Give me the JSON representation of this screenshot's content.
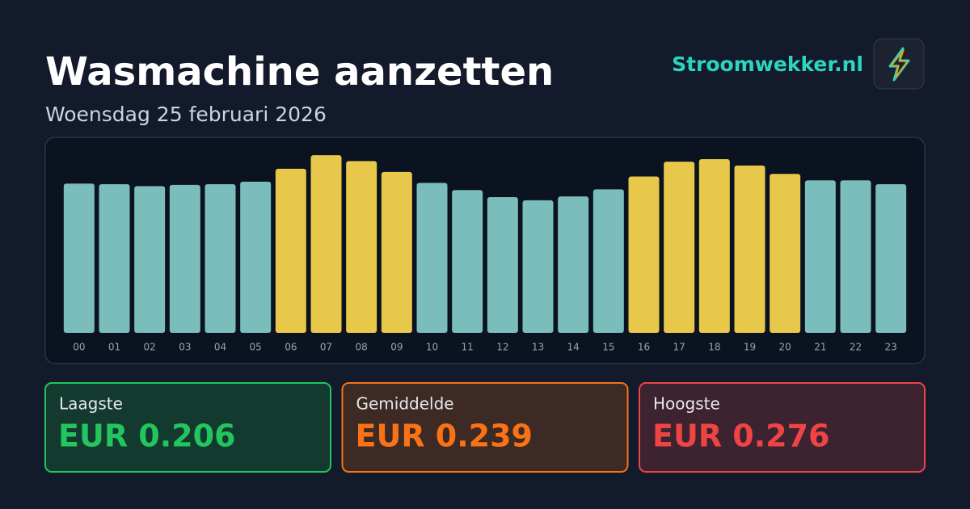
{
  "header": {
    "title": "Wasmachine aanzetten",
    "subtitle": "Woensdag 25 februari 2026",
    "brand": "Stroomwekker.nl"
  },
  "chart_data": {
    "type": "bar",
    "categories": [
      "00",
      "01",
      "02",
      "03",
      "04",
      "05",
      "06",
      "07",
      "08",
      "09",
      "10",
      "11",
      "12",
      "13",
      "14",
      "15",
      "16",
      "17",
      "18",
      "19",
      "20",
      "21",
      "22",
      "23"
    ],
    "values": [
      0.232,
      0.231,
      0.228,
      0.23,
      0.231,
      0.235,
      0.255,
      0.276,
      0.267,
      0.25,
      0.233,
      0.222,
      0.211,
      0.206,
      0.212,
      0.223,
      0.243,
      0.266,
      0.27,
      0.26,
      0.247,
      0.237,
      0.237,
      0.231
    ],
    "colors": [
      "#7bbcbc",
      "#7bbcbc",
      "#7bbcbc",
      "#7bbcbc",
      "#7bbcbc",
      "#7bbcbc",
      "#e8c84a",
      "#e8c84a",
      "#e8c84a",
      "#e8c84a",
      "#7bbcbc",
      "#7bbcbc",
      "#7bbcbc",
      "#7bbcbc",
      "#7bbcbc",
      "#7bbcbc",
      "#e8c84a",
      "#e8c84a",
      "#e8c84a",
      "#e8c84a",
      "#e8c84a",
      "#7bbcbc",
      "#7bbcbc",
      "#7bbcbc"
    ],
    "ylim": [
      0,
      0.28
    ]
  },
  "stats": [
    {
      "label": "Laagste",
      "value": "EUR 0.206",
      "color": "#22c55e",
      "fill": "#143a2f"
    },
    {
      "label": "Gemiddelde",
      "value": "EUR 0.239",
      "color": "#f97316",
      "fill": "#3d2a24"
    },
    {
      "label": "Hoogste",
      "value": "EUR 0.276",
      "color": "#ef4444",
      "fill": "#3d2230"
    }
  ]
}
